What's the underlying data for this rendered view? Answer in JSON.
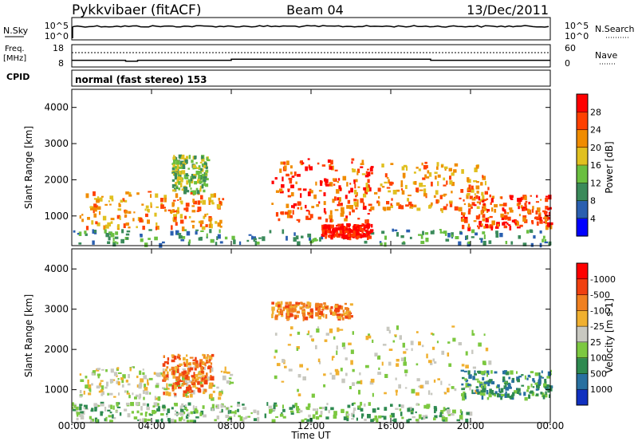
{
  "header": {
    "station": "Pykkvibaer (fitACF)",
    "beam": "Beam 04",
    "date": "13/Dec/2011"
  },
  "status_panels": {
    "nsky_label": "N.Sky",
    "nsky_ticks": [
      "10^5",
      "10^0"
    ],
    "nsearch_label": "N.Search",
    "nsearch_ticks": [
      "10^5",
      "10^0"
    ],
    "freq_label_1": "Freq.",
    "freq_label_2": "[MHz]",
    "freq_ticks": [
      "18",
      "8"
    ],
    "nave_label": "Nave",
    "nave_ticks": [
      "60",
      "0"
    ],
    "cpid_label": "CPID",
    "cpid_text": "normal (fast stereo) 153",
    "freq_steps": [
      {
        "t": 0,
        "v": 11.0
      },
      {
        "t": 2.7,
        "v": 10.6
      },
      {
        "t": 3.3,
        "v": 11.0
      },
      {
        "t": 8.0,
        "v": 11.5
      },
      {
        "t": 18.0,
        "v": 11.0
      },
      {
        "t": 24.0,
        "v": 11.0
      }
    ]
  },
  "chart_data": [
    {
      "type": "heatmap",
      "name": "power",
      "ylabel": "Slant Range [km]",
      "y_ticks": [
        "1000",
        "2000",
        "3000",
        "4000"
      ],
      "ylim": [
        180,
        4500
      ],
      "xlim": [
        0,
        24
      ],
      "colorbar_label": "Power [dB]",
      "colorbar_ticks": [
        "4",
        "8",
        "12",
        "16",
        "20",
        "24",
        "28"
      ],
      "colorbar_colors": [
        "#0000ff",
        "#2a5fb0",
        "#3a8a5a",
        "#6abf40",
        "#e0c020",
        "#f08c00",
        "#ff4000",
        "#ff0000"
      ],
      "blobs": [
        {
          "t0": 0.3,
          "t1": 7.6,
          "r0": 700,
          "r1": 1700,
          "level": 5
        },
        {
          "t0": 5.0,
          "t1": 6.8,
          "r0": 1700,
          "r1": 2700,
          "level": 3
        },
        {
          "t0": 0.0,
          "t1": 24.0,
          "r0": 250,
          "r1": 650,
          "level": 2
        },
        {
          "t0": 10.0,
          "t1": 15.0,
          "r0": 900,
          "r1": 2600,
          "level": 6
        },
        {
          "t0": 12.5,
          "t1": 15.0,
          "r0": 450,
          "r1": 800,
          "level": 7
        },
        {
          "t0": 14.0,
          "t1": 21.0,
          "r0": 1200,
          "r1": 2500,
          "level": 5
        },
        {
          "t0": 19.5,
          "t1": 24.0,
          "r0": 700,
          "r1": 1600,
          "level": 6
        }
      ]
    },
    {
      "type": "heatmap",
      "name": "velocity",
      "ylabel": "Slant Range [km]",
      "y_ticks": [
        "1000",
        "2000",
        "3000",
        "4000"
      ],
      "ylim": [
        180,
        4500
      ],
      "xlim": [
        0,
        24
      ],
      "xlabel": "Time UT",
      "x_ticks": [
        "00:00",
        "04:00",
        "08:00",
        "12:00",
        "16:00",
        "20:00",
        "00:00"
      ],
      "colorbar_label": "Velocity [m s-1]",
      "colorbar_ticks": [
        "1000",
        "500",
        "100",
        "25",
        "-25",
        "-100",
        "-500",
        "-1000"
      ],
      "colorbar_colors": [
        "#1030c0",
        "#2870a0",
        "#2e8a50",
        "#7cc840",
        "#c8c8c0",
        "#f0b030",
        "#f08020",
        "#f04010",
        "#ff0000"
      ],
      "blobs": [
        {
          "t0": 0.3,
          "t1": 8.0,
          "r0": 800,
          "r1": 1600,
          "level": 4
        },
        {
          "t0": 4.5,
          "t1": 7.0,
          "r0": 900,
          "r1": 1900,
          "level": 6
        },
        {
          "t0": 0.0,
          "t1": 8.0,
          "r0": 250,
          "r1": 700,
          "level": 3
        },
        {
          "t0": 10.0,
          "t1": 21.0,
          "r0": 900,
          "r1": 2600,
          "level": 4
        },
        {
          "t0": 10.0,
          "t1": 14.0,
          "r0": 2800,
          "r1": 3200,
          "level": 6
        },
        {
          "t0": 19.5,
          "t1": 24.0,
          "r0": 800,
          "r1": 1500,
          "level": 2
        },
        {
          "t0": 8.0,
          "t1": 20.0,
          "r0": 250,
          "r1": 700,
          "level": 3
        }
      ]
    }
  ]
}
